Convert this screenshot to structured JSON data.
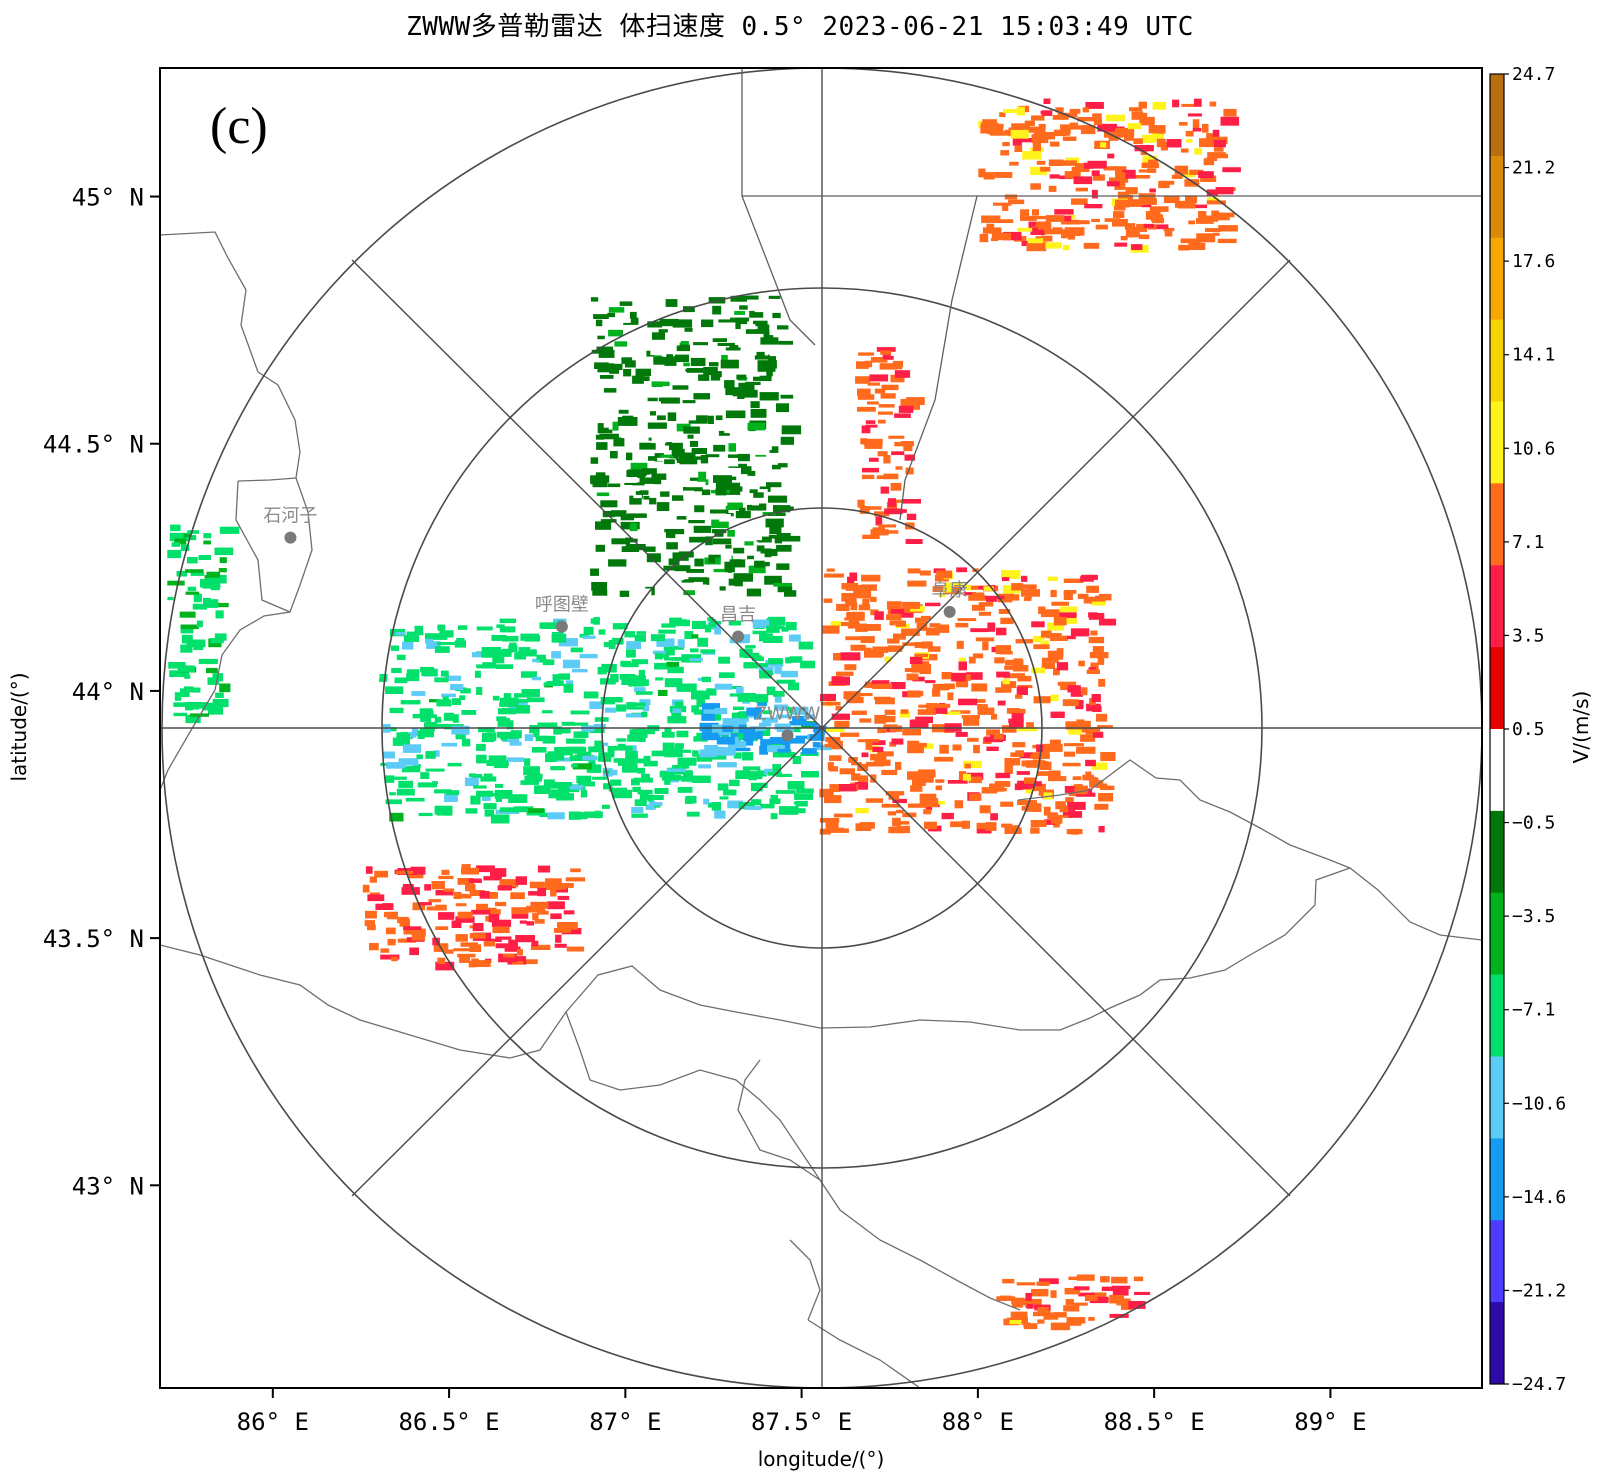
{
  "title": "ZWWW多普勒雷达 体扫速度 0.5°  2023-06-21 15:03:49 UTC",
  "chart_data": {
    "type": "heatmap",
    "title": "ZWWW多普勒雷达 体扫速度 0.5°  2023-06-21 15:03:49 UTC",
    "panel_label": "(c)",
    "xlabel": "longitude/(°)",
    "ylabel": "latitude/(°)",
    "x_ticks": [
      "86° E",
      "86.5° E",
      "87° E",
      "87.5° E",
      "88° E",
      "88.5° E",
      "89° E"
    ],
    "y_ticks": [
      "45° N",
      "44.5° N",
      "44° N",
      "43.5° N",
      "43° N"
    ],
    "xlim": [
      85.68,
      89.43
    ],
    "ylim": [
      42.59,
      45.26
    ],
    "radar_site": {
      "name": "ZWWW",
      "lon": 87.55,
      "lat": 43.92
    },
    "range_rings_deg_lat": [
      0.45,
      0.9,
      1.35
    ],
    "cities": [
      {
        "name": "石河子",
        "lon": 86.05,
        "lat": 44.31
      },
      {
        "name": "呼图壁",
        "lon": 86.82,
        "lat": 44.13
      },
      {
        "name": "昌吉",
        "lon": 87.32,
        "lat": 44.11
      },
      {
        "name": "阜康",
        "lon": 87.92,
        "lat": 44.16
      },
      {
        "name": "ZWWW",
        "lon": 87.46,
        "lat": 43.91
      }
    ],
    "colorbar": {
      "label": "V/(m/s)",
      "tick_labels": [
        "24.7",
        "21.2",
        "17.6",
        "14.1",
        "10.6",
        "7.1",
        "3.5",
        "0.5",
        "−0.5",
        "−3.5",
        "−7.1",
        "−10.6",
        "−14.6",
        "−21.2",
        "−24.7"
      ],
      "colors": [
        "#b86f0f",
        "#d98a08",
        "#f6a800",
        "#f7d300",
        "#fff31c",
        "#ff6a1d",
        "#ff1e46",
        "#e80000",
        "#ffffff",
        "#00780a",
        "#00b31d",
        "#00e06a",
        "#5ccbf5",
        "#159bf2",
        "#4e3dff",
        "#2f0aa8"
      ]
    },
    "echo_regions": [
      {
        "name": "northwest-approaching",
        "velocity": -5.0,
        "lon": [
          86.9,
          87.45
        ],
        "lat": [
          44.2,
          44.8
        ]
      },
      {
        "name": "west-inbound",
        "velocity": -13.0,
        "lon": [
          86.3,
          87.5
        ],
        "lat": [
          43.75,
          44.15
        ]
      },
      {
        "name": "west-core",
        "velocity": -18.0,
        "lon": [
          87.2,
          87.55
        ],
        "lat": [
          43.88,
          43.98
        ]
      },
      {
        "name": "east-receding",
        "velocity": 5.0,
        "lon": [
          87.55,
          88.35
        ],
        "lat": [
          43.72,
          44.25
        ]
      },
      {
        "name": "north-receding",
        "velocity": 4.5,
        "lon": [
          87.65,
          87.8
        ],
        "lat": [
          44.3,
          44.7
        ]
      },
      {
        "name": "northeast-far",
        "velocity": 5.0,
        "lon": [
          88.0,
          88.7
        ],
        "lat": [
          44.9,
          45.2
        ]
      },
      {
        "name": "southwest-band",
        "velocity": 4.0,
        "lon": [
          86.25,
          86.85
        ],
        "lat": [
          43.45,
          43.65
        ]
      },
      {
        "name": "far-west-edge",
        "velocity": -12.0,
        "lon": [
          85.7,
          85.85
        ],
        "lat": [
          43.95,
          44.35
        ]
      },
      {
        "name": "southeast-far",
        "velocity": 5.0,
        "lon": [
          88.05,
          88.45
        ],
        "lat": [
          42.72,
          42.82
        ]
      }
    ]
  }
}
